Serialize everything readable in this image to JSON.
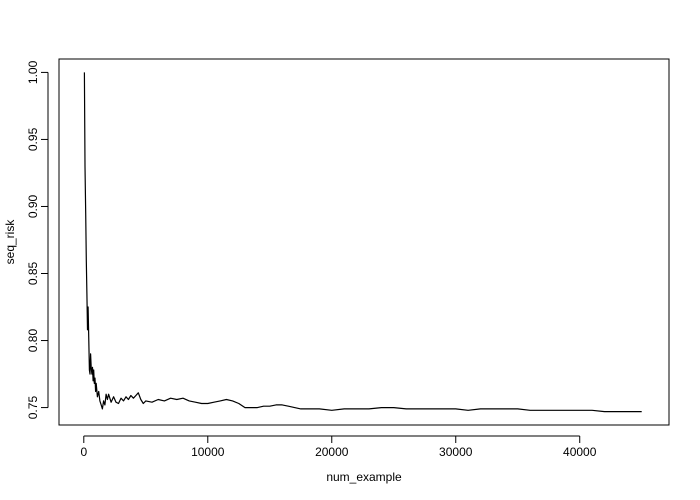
{
  "chart_data": {
    "type": "line",
    "xlabel": "num_example",
    "ylabel": "seq_risk",
    "xlim": [
      -2000,
      47200
    ],
    "ylim": [
      0.737,
      1.01
    ],
    "grid": false,
    "legend": "none",
    "xticks": [
      0,
      10000,
      20000,
      30000,
      40000
    ],
    "xtick_labels": [
      "0",
      "10000",
      "20000",
      "30000",
      "40000"
    ],
    "yticks": [
      0.75,
      0.8,
      0.85,
      0.9,
      0.95,
      1.0
    ],
    "ytick_labels": [
      "0.75",
      "0.80",
      "0.85",
      "0.90",
      "0.95",
      "1.00"
    ],
    "series": [
      {
        "color": "#000000",
        "x": [
          50,
          100,
          150,
          200,
          250,
          300,
          350,
          400,
          450,
          500,
          550,
          600,
          650,
          700,
          750,
          800,
          850,
          900,
          950,
          1000,
          1100,
          1200,
          1300,
          1400,
          1500,
          1600,
          1700,
          1800,
          1900,
          2000,
          2200,
          2400,
          2600,
          2800,
          3000,
          3200,
          3400,
          3600,
          3800,
          4000,
          4200,
          4400,
          4600,
          4800,
          5000,
          5500,
          6000,
          6500,
          7000,
          7500,
          8000,
          8500,
          9000,
          9500,
          10000,
          10500,
          11000,
          11500,
          12000,
          12500,
          13000,
          13500,
          14000,
          14500,
          15000,
          15500,
          16000,
          16500,
          17000,
          17500,
          18000,
          19000,
          20000,
          21000,
          22000,
          23000,
          24000,
          25000,
          26000,
          27000,
          28000,
          29000,
          30000,
          31000,
          32000,
          33000,
          34000,
          35000,
          36000,
          37000,
          38000,
          39000,
          40000,
          41000,
          42000,
          43000,
          44000,
          45000
        ],
        "y": [
          1.0,
          0.93,
          0.895,
          0.86,
          0.835,
          0.808,
          0.825,
          0.8,
          0.778,
          0.775,
          0.79,
          0.78,
          0.775,
          0.78,
          0.77,
          0.778,
          0.768,
          0.772,
          0.762,
          0.768,
          0.758,
          0.762,
          0.755,
          0.752,
          0.749,
          0.755,
          0.752,
          0.76,
          0.756,
          0.76,
          0.754,
          0.758,
          0.754,
          0.753,
          0.757,
          0.755,
          0.758,
          0.756,
          0.759,
          0.757,
          0.759,
          0.761,
          0.756,
          0.753,
          0.755,
          0.754,
          0.756,
          0.755,
          0.757,
          0.756,
          0.757,
          0.755,
          0.754,
          0.753,
          0.753,
          0.754,
          0.755,
          0.756,
          0.755,
          0.753,
          0.75,
          0.75,
          0.75,
          0.751,
          0.751,
          0.752,
          0.752,
          0.751,
          0.75,
          0.749,
          0.749,
          0.749,
          0.748,
          0.749,
          0.749,
          0.749,
          0.75,
          0.75,
          0.749,
          0.749,
          0.749,
          0.749,
          0.749,
          0.748,
          0.749,
          0.749,
          0.749,
          0.749,
          0.748,
          0.748,
          0.748,
          0.748,
          0.748,
          0.748,
          0.747,
          0.747,
          0.747,
          0.747
        ]
      }
    ]
  }
}
